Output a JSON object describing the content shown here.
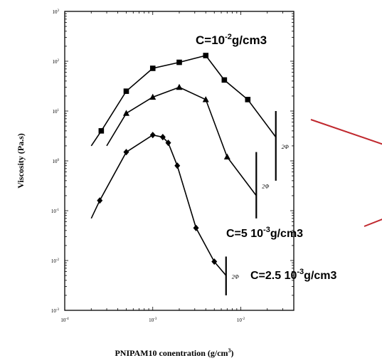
{
  "chart_data": {
    "type": "line",
    "xlabel": "PNIPAM10 conentration   (g/cm",
    "xlabel_sup": "3",
    "xlabel_tail": ")",
    "ylabel": "Viscosity  (Pa.s)",
    "x_scale": "log",
    "y_scale": "log",
    "xlim": [
      0.0001,
      0.04
    ],
    "ylim": [
      0.001,
      1000
    ],
    "x_ticks": [
      {
        "base": "10",
        "exp": "-4",
        "value": 0.0001
      },
      {
        "base": "10",
        "exp": "-3",
        "value": 0.001
      },
      {
        "base": "10",
        "exp": "-2",
        "value": 0.01
      }
    ],
    "y_ticks": [
      {
        "base": "10",
        "exp": "3",
        "value": 1000
      },
      {
        "base": "10",
        "exp": "2",
        "value": 100
      },
      {
        "base": "10",
        "exp": "1",
        "value": 10
      },
      {
        "base": "10",
        "exp": "0",
        "value": 1
      },
      {
        "base": "10",
        "exp": "-1",
        "value": 0.1
      },
      {
        "base": "10",
        "exp": "-2",
        "value": 0.01
      },
      {
        "base": "10",
        "exp": "-3",
        "value": 0.001
      }
    ],
    "grid": false,
    "series": [
      {
        "label_parts": [
          "C=10",
          "-2",
          "g/cm3"
        ],
        "marker": "square",
        "x": [
          0.0002,
          0.00026,
          0.0005,
          0.001,
          0.002,
          0.004,
          0.0065,
          0.012,
          0.025
        ],
        "y": [
          2.0,
          4.0,
          25,
          72,
          95,
          130,
          42,
          17,
          3.0
        ],
        "point_markers": [
          false,
          true,
          true,
          true,
          true,
          true,
          true,
          true,
          false
        ]
      },
      {
        "label_parts": [
          "C=5  10",
          "-3",
          "g/cm3"
        ],
        "marker": "triangle",
        "x": [
          0.0003,
          0.0005,
          0.001,
          0.002,
          0.004,
          0.007,
          0.015
        ],
        "y": [
          2.0,
          9.0,
          19,
          30,
          17,
          1.2,
          0.2
        ],
        "point_markers": [
          false,
          true,
          true,
          true,
          true,
          true,
          false
        ]
      },
      {
        "label_parts": [
          "C=2.5  10",
          "-3",
          "g/cm3"
        ],
        "marker": "diamond",
        "x": [
          0.0002,
          0.00025,
          0.0005,
          0.001,
          0.0013,
          0.0015,
          0.0019,
          0.0031,
          0.005,
          0.0068
        ],
        "y": [
          0.07,
          0.16,
          1.5,
          3.3,
          3.0,
          2.3,
          0.8,
          0.045,
          0.0095,
          0.005
        ],
        "point_markers": [
          false,
          true,
          true,
          true,
          true,
          true,
          true,
          true,
          true,
          false
        ]
      }
    ],
    "phase_boundaries": [
      {
        "label": "2Φ",
        "x": 0.025,
        "y_range": [
          0.4,
          10
        ]
      },
      {
        "label": "2Φ",
        "x": 0.015,
        "y_range": [
          0.07,
          1.5
        ]
      },
      {
        "label": "2Φ",
        "x": 0.0068,
        "y_range": [
          0.002,
          0.012
        ]
      }
    ],
    "annotation_lines_color": "#c0282e"
  }
}
